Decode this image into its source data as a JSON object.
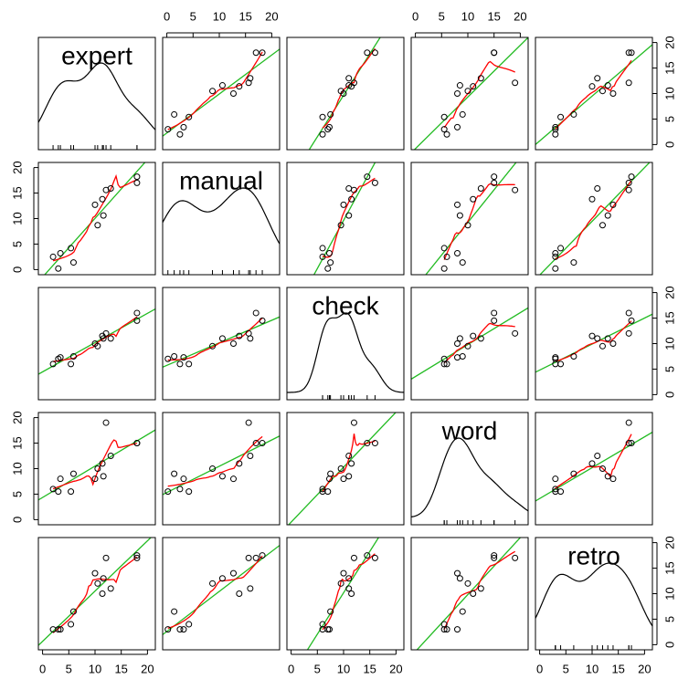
{
  "chart_data": {
    "type": "scattermatrix",
    "variables": [
      {
        "name": "expert",
        "values": [
          3,
          5.9,
          2,
          3.4,
          5.4,
          10.5,
          11.6,
          10,
          11.4,
          12.1,
          13,
          18,
          18
        ]
      },
      {
        "name": "manual",
        "values": [
          0.2,
          1.4,
          2.5,
          3.2,
          4.2,
          8.7,
          10.6,
          12.7,
          13.8,
          15.6,
          15.9,
          17,
          18.2
        ]
      },
      {
        "name": "check",
        "values": [
          7,
          7.5,
          6,
          7.3,
          6,
          9.5,
          11,
          10,
          11.5,
          12,
          11,
          16,
          14.5
        ]
      },
      {
        "name": "word",
        "values": [
          5.5,
          9,
          6,
          8,
          5.5,
          10,
          8.5,
          8,
          11,
          19,
          12.5,
          15,
          15
        ]
      },
      {
        "name": "retro",
        "values": [
          3,
          6.5,
          3,
          3,
          4,
          12,
          13,
          14,
          10,
          17,
          11,
          17,
          17.5
        ]
      }
    ],
    "xlim": [
      -0.8,
      21.5
    ],
    "ylim": [
      -1,
      21
    ],
    "ticks": [
      0,
      5,
      10,
      15,
      20
    ],
    "point_color": "#000000",
    "fit_color": "#22bb22",
    "smooth_color": "#ff0000",
    "density_color": "#000000"
  }
}
